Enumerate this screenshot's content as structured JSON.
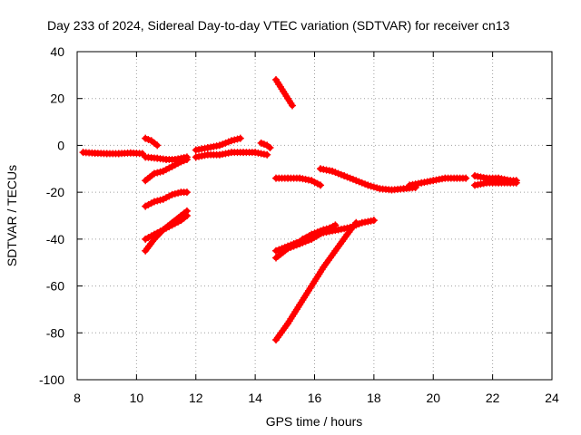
{
  "chart_data": {
    "type": "scatter",
    "title": "Day 233 of 2024, Sidereal Day-to-day VTEC variation (SDTVAR) for receiver cn13",
    "xlabel": "GPS time / hours",
    "ylabel": "SDTVAR / TECUs",
    "xlim": [
      8,
      24
    ],
    "ylim": [
      -100,
      40
    ],
    "xticks": [
      8,
      10,
      12,
      14,
      16,
      18,
      20,
      22,
      24
    ],
    "yticks": [
      -100,
      -80,
      -60,
      -40,
      -20,
      0,
      20,
      40
    ],
    "grid": true,
    "marker": "plus",
    "color": "#ff0000",
    "series": [
      {
        "name": "s1",
        "x": [
          8.2,
          8.6,
          9.0,
          9.4,
          9.8,
          10.2
        ],
        "y": [
          -3,
          -3.3,
          -3.5,
          -3.5,
          -3.2,
          -3.5
        ]
      },
      {
        "name": "s2",
        "x": [
          10.3,
          10.5,
          10.7
        ],
        "y": [
          3,
          2,
          0
        ]
      },
      {
        "name": "s3",
        "x": [
          10.3,
          10.7,
          11.0,
          11.3,
          11.7
        ],
        "y": [
          -5,
          -5.5,
          -6,
          -6,
          -5
        ]
      },
      {
        "name": "s4",
        "x": [
          10.3,
          10.6,
          10.9,
          11.2,
          11.5,
          11.7
        ],
        "y": [
          -15,
          -12,
          -11,
          -9,
          -7,
          -6
        ]
      },
      {
        "name": "s5",
        "x": [
          10.3,
          10.6,
          10.9,
          11.2,
          11.5,
          11.7
        ],
        "y": [
          -26,
          -24,
          -23,
          -21,
          -20,
          -20
        ]
      },
      {
        "name": "s6",
        "x": [
          10.3,
          10.6,
          10.9,
          11.2,
          11.5,
          11.7
        ],
        "y": [
          -45,
          -40,
          -36,
          -33,
          -30,
          -28
        ]
      },
      {
        "name": "s7",
        "x": [
          10.3,
          10.6,
          10.9,
          11.2,
          11.5,
          11.7
        ],
        "y": [
          -40,
          -38,
          -36,
          -34,
          -32,
          -30
        ]
      },
      {
        "name": "s8",
        "x": [
          12.0,
          12.4,
          12.8,
          13.2,
          13.6,
          14.0,
          14.4
        ],
        "y": [
          -5,
          -4,
          -4,
          -3,
          -3,
          -3,
          -4
        ]
      },
      {
        "name": "s9",
        "x": [
          12.0,
          12.4,
          12.8,
          13.2,
          13.5
        ],
        "y": [
          -2,
          -1,
          0,
          2,
          3
        ]
      },
      {
        "name": "s10",
        "x": [
          14.2,
          14.4,
          14.5
        ],
        "y": [
          1,
          0,
          -1
        ]
      },
      {
        "name": "s11",
        "x": [
          14.7,
          14.8,
          14.95,
          15.1,
          15.25
        ],
        "y": [
          28,
          26,
          23,
          20,
          17
        ]
      },
      {
        "name": "s12",
        "x": [
          14.7,
          15.1,
          15.5,
          15.9,
          16.2
        ],
        "y": [
          -14,
          -14,
          -14,
          -15,
          -17
        ]
      },
      {
        "name": "s13",
        "x": [
          14.7,
          15.1,
          15.5,
          15.9,
          16.3,
          16.7
        ],
        "y": [
          -48,
          -44,
          -42,
          -40,
          -37,
          -34
        ]
      },
      {
        "name": "s14",
        "x": [
          14.7,
          15.1,
          15.5,
          15.9,
          16.3,
          16.6
        ],
        "y": [
          -45,
          -43,
          -41,
          -38,
          -36,
          -35
        ]
      },
      {
        "name": "s15",
        "x": [
          15.6,
          16.0,
          16.4,
          16.8,
          17.2,
          17.6,
          18.0
        ],
        "y": [
          -40,
          -38,
          -37,
          -36,
          -35,
          -33,
          -32
        ]
      },
      {
        "name": "s16",
        "x": [
          14.7,
          15.1,
          15.5,
          15.9,
          16.3,
          16.7,
          17.1,
          17.4
        ],
        "y": [
          -83,
          -76,
          -68,
          -60,
          -52,
          -45,
          -38,
          -33
        ]
      },
      {
        "name": "s17",
        "x": [
          16.2,
          16.6,
          17.0,
          17.4,
          17.8,
          18.2,
          18.6,
          19.0,
          19.4
        ],
        "y": [
          -10,
          -11,
          -13,
          -15,
          -17,
          -18.5,
          -19,
          -18.5,
          -18
        ]
      },
      {
        "name": "s18",
        "x": [
          19.2,
          19.6,
          20.0,
          20.4,
          20.8,
          21.1
        ],
        "y": [
          -17,
          -16,
          -15,
          -14,
          -14,
          -14
        ]
      },
      {
        "name": "s19",
        "x": [
          21.4,
          21.8,
          22.2,
          22.6,
          22.8
        ],
        "y": [
          -13,
          -14,
          -14,
          -15,
          -15
        ]
      },
      {
        "name": "s20",
        "x": [
          21.4,
          21.8,
          22.2,
          22.6,
          22.8
        ],
        "y": [
          -17,
          -16,
          -16,
          -16,
          -16
        ]
      }
    ]
  }
}
